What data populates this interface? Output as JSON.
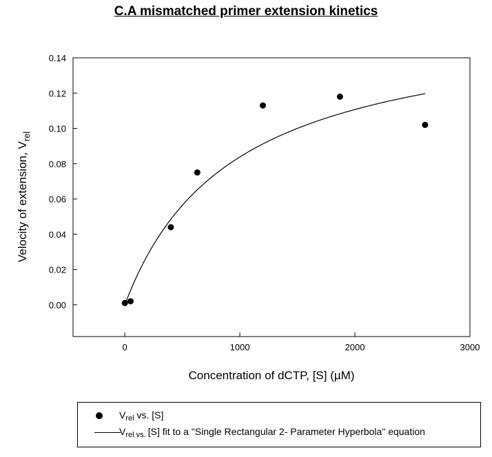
{
  "chart_data": {
    "type": "scatter",
    "title": "C.A mismatched primer extension kinetics",
    "xlabel": "Concentration of dCTP, [S] (µM)",
    "ylabel_main": "Velocity of extension, V",
    "ylabel_sub": "rel",
    "xlim": [
      -450,
      3000
    ],
    "ylim": [
      -0.018,
      0.14
    ],
    "xticks": [
      0,
      1000,
      2000,
      3000
    ],
    "xtick_labels": [
      "0",
      "1000",
      "2000",
      "3000"
    ],
    "yticks": [
      0.0,
      0.02,
      0.04,
      0.06,
      0.08,
      0.1,
      0.12,
      0.14
    ],
    "ytick_labels": [
      "0.00",
      "0.02",
      "0.04",
      "0.06",
      "0.08",
      "0.10",
      "0.12",
      "0.14"
    ],
    "grid": false,
    "series": [
      {
        "kind": "points",
        "x": [
          0,
          50,
          400,
          630,
          1200,
          1870,
          2610
        ],
        "y": [
          0.001,
          0.002,
          0.044,
          0.075,
          0.113,
          0.118,
          0.102
        ]
      },
      {
        "kind": "fit",
        "equation": "Single Rectangular 2-Parameter Hyperbola",
        "vmax": 0.163,
        "km": 945,
        "x_range": [
          0,
          2610
        ]
      }
    ]
  },
  "legend": {
    "points": {
      "v": "V",
      "sub": "rel",
      "rest": " vs. [S]"
    },
    "fit": {
      "v": "V",
      "sub": "rel",
      "mid": " vs. ",
      "rest": "[S] fit to a \"Single Rectangular 2- Parameter Hyperbola\" equation"
    }
  }
}
